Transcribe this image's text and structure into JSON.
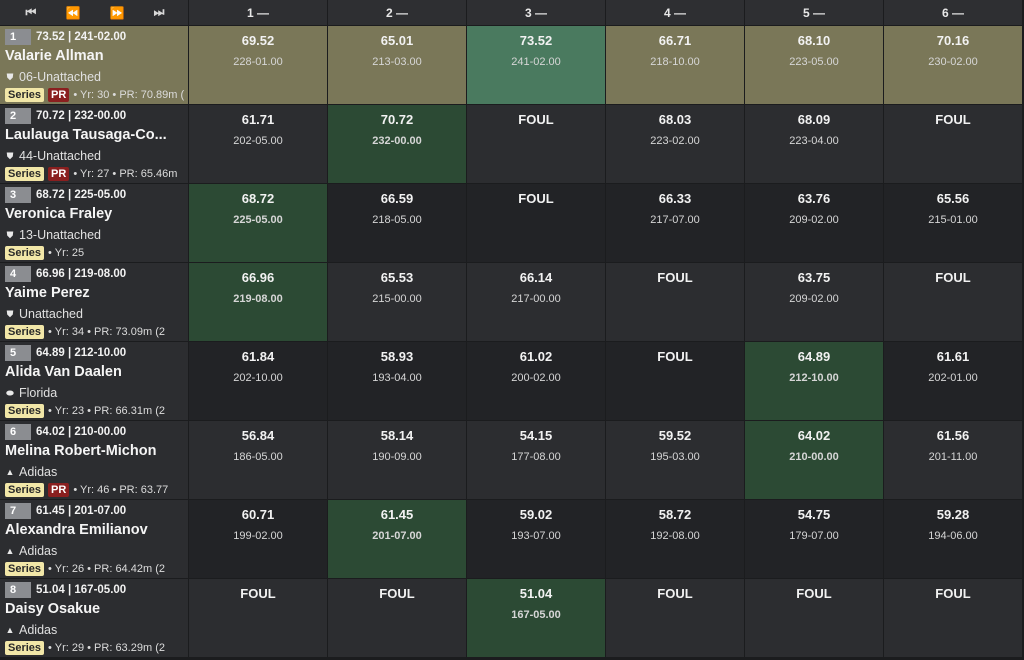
{
  "nav": {
    "first": "⏮",
    "prev": "⏪",
    "next": "⏩",
    "last": "⏭"
  },
  "columns": [
    "1 —",
    "2 —",
    "3 —",
    "4 —",
    "5 —",
    "6 —"
  ],
  "series_label": "Series",
  "pr_label": "PR",
  "athletes": [
    {
      "place": "1",
      "best": "73.52 | 241-02.00",
      "name": "Valarie Allman",
      "team": "06-Unattached",
      "team_icon": "shield-icon",
      "pr": true,
      "info": "• Yr: 30 • PR: 70.89m (",
      "marks": [
        {
          "m": "69.52",
          "ft": "228-01.00"
        },
        {
          "m": "65.01",
          "ft": "213-03.00"
        },
        {
          "m": "73.52",
          "ft": "241-02.00",
          "best": true
        },
        {
          "m": "66.71",
          "ft": "218-10.00"
        },
        {
          "m": "68.10",
          "ft": "223-05.00"
        },
        {
          "m": "70.16",
          "ft": "230-02.00"
        }
      ]
    },
    {
      "place": "2",
      "best": "70.72 | 232-00.00",
      "name": "Laulauga Tausaga-Co...",
      "team": "44-Unattached",
      "team_icon": "shield-icon",
      "pr": true,
      "info": "• Yr: 27 • PR: 65.46m",
      "marks": [
        {
          "m": "61.71",
          "ft": "202-05.00"
        },
        {
          "m": "70.72",
          "ft": "232-00.00",
          "best": true
        },
        {
          "m": "FOUL",
          "ft": ""
        },
        {
          "m": "68.03",
          "ft": "223-02.00"
        },
        {
          "m": "68.09",
          "ft": "223-04.00"
        },
        {
          "m": "FOUL",
          "ft": ""
        }
      ]
    },
    {
      "place": "3",
      "best": "68.72 | 225-05.00",
      "name": "Veronica Fraley",
      "team": "13-Unattached",
      "team_icon": "shield-icon",
      "pr": false,
      "info": "• Yr: 25",
      "marks": [
        {
          "m": "68.72",
          "ft": "225-05.00",
          "best": true
        },
        {
          "m": "66.59",
          "ft": "218-05.00"
        },
        {
          "m": "FOUL",
          "ft": ""
        },
        {
          "m": "66.33",
          "ft": "217-07.00"
        },
        {
          "m": "63.76",
          "ft": "209-02.00"
        },
        {
          "m": "65.56",
          "ft": "215-01.00"
        }
      ]
    },
    {
      "place": "4",
      "best": "66.96 | 219-08.00",
      "name": "Yaime Perez",
      "team": "Unattached",
      "team_icon": "shield-icon",
      "pr": false,
      "info": "• Yr: 34 • PR: 73.09m (2",
      "marks": [
        {
          "m": "66.96",
          "ft": "219-08.00",
          "best": true
        },
        {
          "m": "65.53",
          "ft": "215-00.00"
        },
        {
          "m": "66.14",
          "ft": "217-00.00"
        },
        {
          "m": "FOUL",
          "ft": ""
        },
        {
          "m": "63.75",
          "ft": "209-02.00"
        },
        {
          "m": "FOUL",
          "ft": ""
        }
      ]
    },
    {
      "place": "5",
      "best": "64.89 | 212-10.00",
      "name": "Alida Van Daalen",
      "team": "Florida",
      "team_icon": "oval-icon",
      "pr": false,
      "info": "• Yr: 23 • PR: 66.31m (2",
      "marks": [
        {
          "m": "61.84",
          "ft": "202-10.00"
        },
        {
          "m": "58.93",
          "ft": "193-04.00"
        },
        {
          "m": "61.02",
          "ft": "200-02.00"
        },
        {
          "m": "FOUL",
          "ft": ""
        },
        {
          "m": "64.89",
          "ft": "212-10.00",
          "best": true
        },
        {
          "m": "61.61",
          "ft": "202-01.00"
        }
      ]
    },
    {
      "place": "6",
      "best": "64.02 | 210-00.00",
      "name": "Melina Robert-Michon",
      "team": "Adidas",
      "team_icon": "adidas-icon",
      "pr": true,
      "info": "• Yr: 46 • PR: 63.77",
      "marks": [
        {
          "m": "56.84",
          "ft": "186-05.00"
        },
        {
          "m": "58.14",
          "ft": "190-09.00"
        },
        {
          "m": "54.15",
          "ft": "177-08.00"
        },
        {
          "m": "59.52",
          "ft": "195-03.00"
        },
        {
          "m": "64.02",
          "ft": "210-00.00",
          "best": true
        },
        {
          "m": "61.56",
          "ft": "201-11.00"
        }
      ]
    },
    {
      "place": "7",
      "best": "61.45 | 201-07.00",
      "name": "Alexandra Emilianov",
      "team": "Adidas",
      "team_icon": "adidas-icon",
      "pr": false,
      "info": "• Yr: 26 • PR: 64.42m (2",
      "marks": [
        {
          "m": "60.71",
          "ft": "199-02.00"
        },
        {
          "m": "61.45",
          "ft": "201-07.00",
          "best": true
        },
        {
          "m": "59.02",
          "ft": "193-07.00"
        },
        {
          "m": "58.72",
          "ft": "192-08.00"
        },
        {
          "m": "54.75",
          "ft": "179-07.00"
        },
        {
          "m": "59.28",
          "ft": "194-06.00"
        }
      ]
    },
    {
      "place": "8",
      "best": "51.04 | 167-05.00",
      "name": "Daisy Osakue",
      "team": "Adidas",
      "team_icon": "adidas-icon",
      "pr": false,
      "info": "• Yr: 29 • PR: 63.29m (2",
      "marks": [
        {
          "m": "FOUL",
          "ft": ""
        },
        {
          "m": "FOUL",
          "ft": ""
        },
        {
          "m": "51.04",
          "ft": "167-05.00",
          "best": true
        },
        {
          "m": "FOUL",
          "ft": ""
        },
        {
          "m": "FOUL",
          "ft": ""
        },
        {
          "m": "FOUL",
          "ft": ""
        }
      ]
    }
  ]
}
